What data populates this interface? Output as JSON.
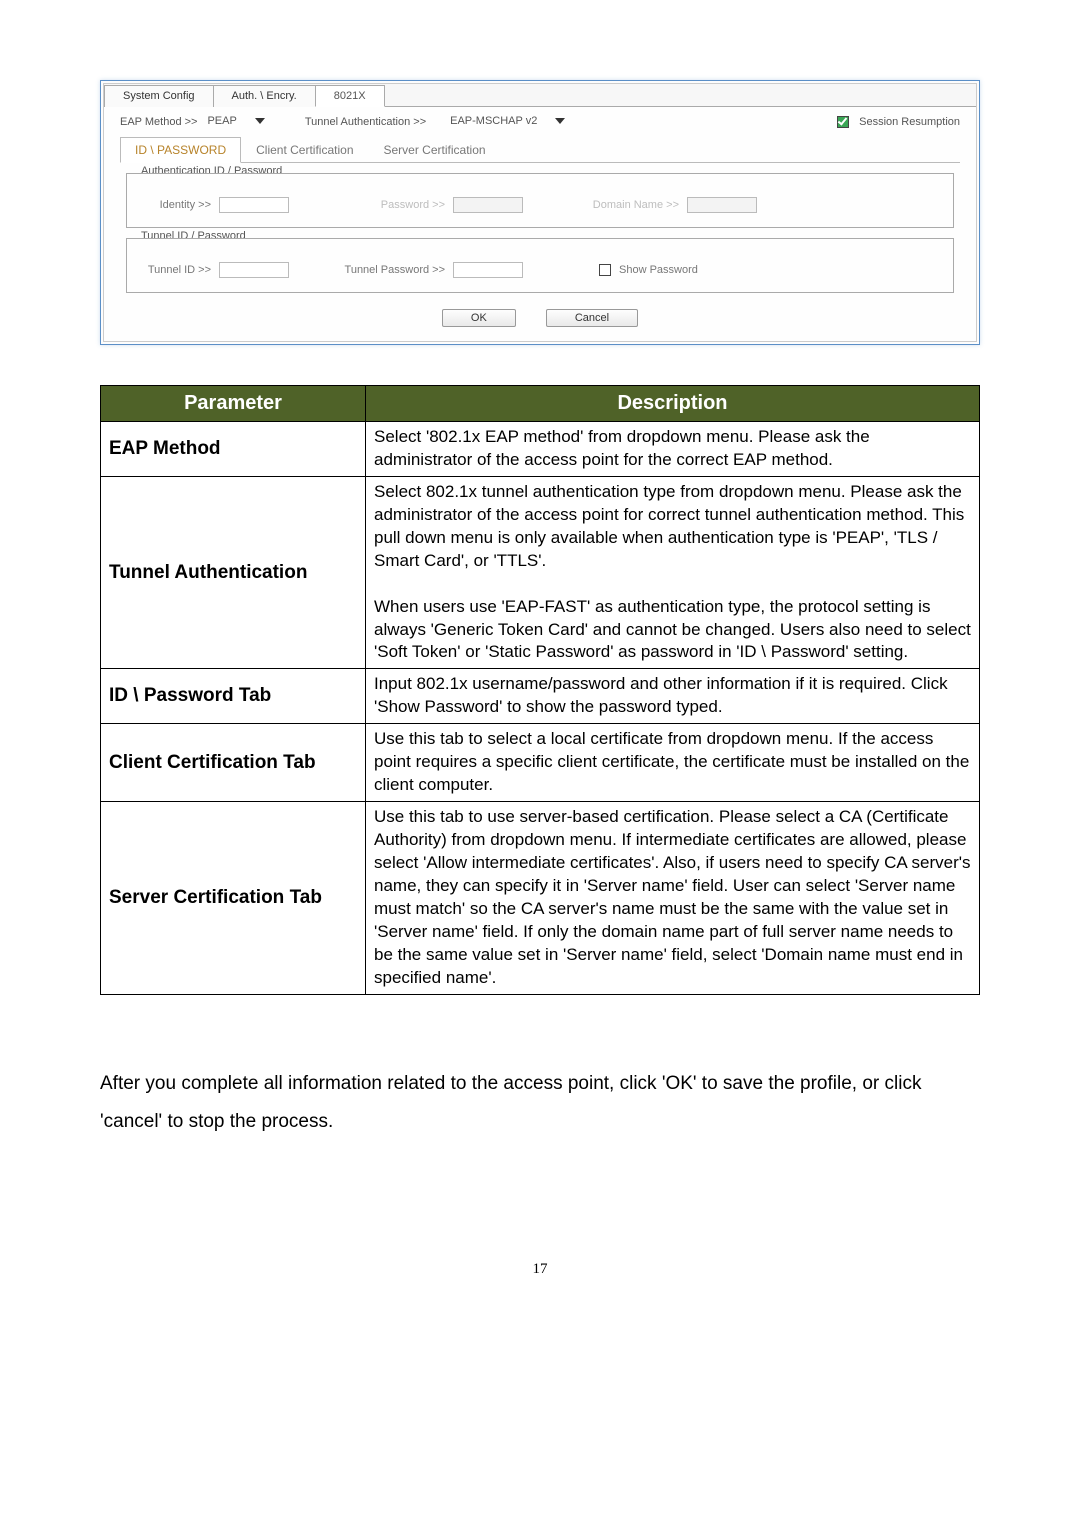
{
  "dialog": {
    "outer_tabs": {
      "system": "System Config",
      "auth": "Auth. \\ Encry.",
      "x8021": "8021X"
    },
    "eap_method_label": "EAP Method >>",
    "eap_method_value": "PEAP",
    "tunnel_auth_label": "Tunnel Authentication >>",
    "tunnel_auth_value": "EAP-MSCHAP v2",
    "session_resumption_label": "Session Resumption",
    "inner_tabs": {
      "idpw": "ID \\ PASSWORD",
      "client": "Client Certification",
      "server": "Server Certification"
    },
    "group1_title": "Authentication ID / Password",
    "identity_label": "Identity >>",
    "password_label": "Password >>",
    "domain_label": "Domain Name >>",
    "group2_title": "Tunnel ID / Password",
    "tunnel_id_label": "Tunnel ID >>",
    "tunnel_pwd_label": "Tunnel Password >>",
    "show_pwd_label": "Show Password",
    "ok_label": "OK",
    "cancel_label": "Cancel"
  },
  "table": {
    "header_param": "Parameter",
    "header_desc": "Description",
    "rows": [
      {
        "param": "EAP Method",
        "desc": "Select '802.1x EAP method' from dropdown menu. Please ask the administrator of the access point for the correct EAP method."
      },
      {
        "param": "Tunnel Authentication",
        "desc": "Select 802.1x tunnel authentication type from dropdown menu. Please ask the administrator of the access point for correct tunnel authentication method. This pull down menu is only available when authentication type is 'PEAP', 'TLS / Smart Card', or 'TTLS'.\n\nWhen users use 'EAP-FAST' as authentication type, the protocol setting is always 'Generic Token Card' and cannot be changed. Users also need to select 'Soft Token' or 'Static Password' as password in 'ID \\ Password' setting."
      },
      {
        "param": "ID \\ Password Tab",
        "desc": "Input 802.1x username/password and other information if it is required. Click 'Show Password' to show the password typed."
      },
      {
        "param": "Client Certification Tab",
        "desc": "Use this tab to select a local certificate from dropdown menu. If the access point requires a specific client certificate, the certificate must be installed on the client computer."
      },
      {
        "param": "Server Certification Tab",
        "desc": "Use this tab to use server-based certification. Please select a CA (Certificate Authority) from dropdown menu. If intermediate certificates are allowed, please select 'Allow intermediate certificates'. Also, if users need to specify CA server's name, they can specify it in 'Server name' field. User can select 'Server name must match' so the CA server's name must be the same with the value set in 'Server name' field. If only the domain name part of full server name needs to be the same value set in 'Server name' field, select 'Domain name must end in specified name'."
      }
    ]
  },
  "paragraph": "After you complete all information related to the access point, click 'OK' to save the profile, or click 'cancel' to stop the process.",
  "page_number": "17",
  "colors": {
    "table_header_bg": "#4f6228",
    "table_header_fg": "#ffffff",
    "border": "#000000",
    "body_fg": "#000000"
  },
  "typography": {
    "body_font": "Arial",
    "body_size_pt": 14,
    "table_size_pt": 13,
    "header_size_pt": 15
  }
}
